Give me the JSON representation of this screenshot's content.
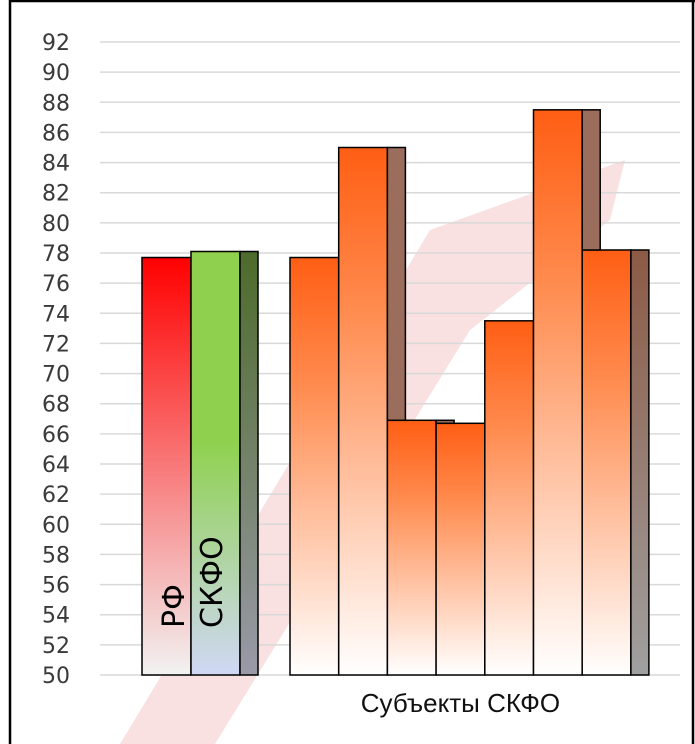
{
  "chart_data": {
    "type": "bar",
    "ylim": [
      50,
      92
    ],
    "ytick_step": 2,
    "ytick_labels": [
      "50",
      "52",
      "54",
      "56",
      "58",
      "60",
      "62",
      "64",
      "66",
      "68",
      "70",
      "72",
      "74",
      "76",
      "78",
      "80",
      "82",
      "84",
      "86",
      "88",
      "90",
      "92"
    ],
    "grid": true,
    "legend": "none",
    "reference_bars": [
      {
        "label": "РФ",
        "value": 77.7,
        "color_top": "#ff0000",
        "color_bottom": "#f2f2f2"
      },
      {
        "label": "СКФО",
        "value": 78.1,
        "color_top": "#8fd14f",
        "color_bottom": "#d0d8f5"
      }
    ],
    "group_label": "Субъекты СКФО",
    "group_bars": [
      {
        "value": 77.7
      },
      {
        "value": 85.0
      },
      {
        "value": 66.9
      },
      {
        "value": 66.7
      },
      {
        "value": 73.5
      },
      {
        "value": 87.5
      },
      {
        "value": 78.2
      }
    ],
    "colors": {
      "subject_top": "#ff5e14",
      "subject_bottom": "#ffffff",
      "side_face": "#8c6a5a",
      "grid": "#d9d9d9",
      "frame": "#000000"
    }
  }
}
